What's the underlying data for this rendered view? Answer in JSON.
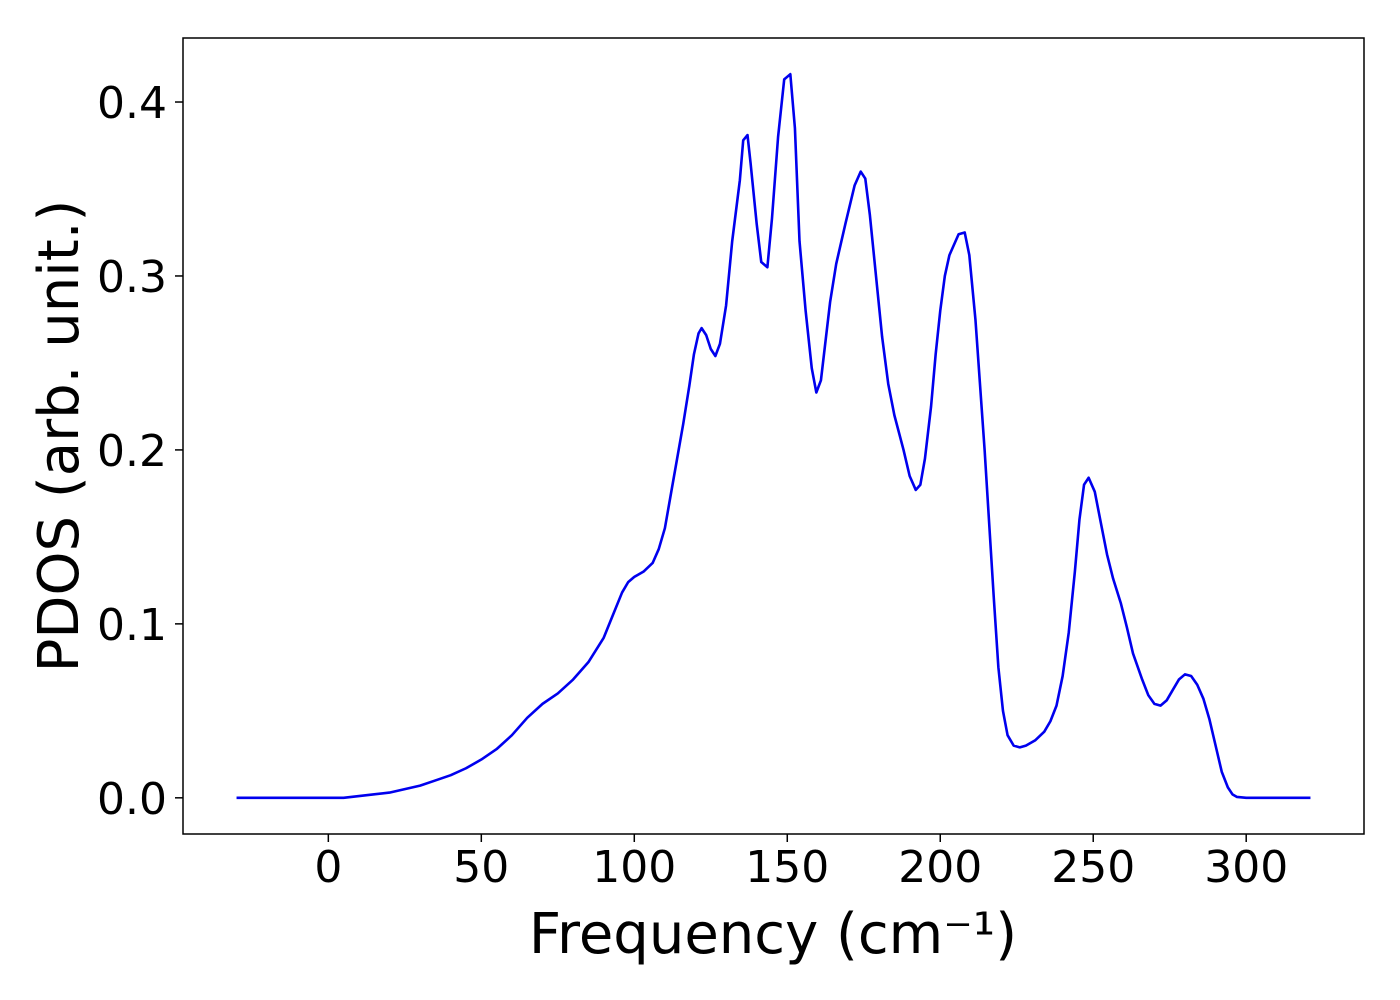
{
  "chart_data": {
    "type": "line",
    "xlabel": "Frequency (cm⁻¹)",
    "ylabel": "PDOS (arb. unit.)",
    "x": [
      -30,
      -20,
      -10,
      0,
      5,
      10,
      15,
      20,
      25,
      30,
      35,
      40,
      45,
      50,
      55,
      60,
      65,
      70,
      75,
      80,
      85,
      90,
      93,
      96,
      98,
      100,
      103,
      106,
      108,
      110,
      112,
      114,
      116,
      118,
      119.5,
      121,
      122,
      123.5,
      125,
      126.5,
      128,
      130,
      132,
      134.5,
      135.6,
      137,
      138,
      140,
      141.5,
      143.5,
      145,
      147,
      149,
      151,
      152.5,
      154,
      156,
      158,
      159.5,
      161,
      164,
      166,
      169,
      172,
      174,
      175.5,
      177,
      179,
      181,
      183,
      185,
      188,
      190,
      192,
      193.5,
      195,
      197,
      198.5,
      200,
      201.5,
      203,
      206,
      208,
      209.5,
      211.5,
      214.5,
      217.5,
      219,
      220.5,
      222,
      224,
      226,
      228,
      231,
      234,
      236,
      238,
      240,
      242,
      244,
      245.5,
      247,
      248.5,
      250.5,
      252.5,
      254.5,
      256.5,
      259,
      261,
      263,
      266,
      268,
      270,
      272,
      274,
      276,
      278,
      280,
      282,
      284,
      286,
      288,
      290,
      292,
      294,
      295.5,
      297,
      300,
      310,
      321
    ],
    "series": [
      {
        "color": "#0000ee",
        "values": [
          0,
          0,
          0,
          0,
          0,
          0.001,
          0.002,
          0.003,
          0.005,
          0.007,
          0.01,
          0.013,
          0.017,
          0.022,
          0.028,
          0.036,
          0.046,
          0.054,
          0.06,
          0.068,
          0.078,
          0.092,
          0.105,
          0.118,
          0.124,
          0.127,
          0.13,
          0.135,
          0.143,
          0.155,
          0.175,
          0.195,
          0.215,
          0.237,
          0.255,
          0.267,
          0.27,
          0.266,
          0.258,
          0.254,
          0.261,
          0.283,
          0.32,
          0.355,
          0.378,
          0.381,
          0.365,
          0.33,
          0.308,
          0.305,
          0.333,
          0.38,
          0.413,
          0.416,
          0.385,
          0.32,
          0.28,
          0.247,
          0.233,
          0.24,
          0.285,
          0.307,
          0.33,
          0.352,
          0.36,
          0.356,
          0.335,
          0.3,
          0.265,
          0.238,
          0.22,
          0.2,
          0.185,
          0.177,
          0.18,
          0.195,
          0.225,
          0.255,
          0.28,
          0.3,
          0.312,
          0.324,
          0.325,
          0.312,
          0.275,
          0.2,
          0.115,
          0.075,
          0.05,
          0.036,
          0.03,
          0.029,
          0.03,
          0.033,
          0.038,
          0.044,
          0.053,
          0.07,
          0.095,
          0.13,
          0.16,
          0.18,
          0.184,
          0.176,
          0.158,
          0.14,
          0.126,
          0.112,
          0.098,
          0.083,
          0.068,
          0.059,
          0.054,
          0.053,
          0.056,
          0.062,
          0.068,
          0.071,
          0.07,
          0.065,
          0.057,
          0.045,
          0.03,
          0.015,
          0.006,
          0.002,
          0.0005,
          0,
          0,
          0
        ]
      }
    ],
    "xlim": [
      -47.5,
      338.5
    ],
    "xticks": [
      0,
      50,
      100,
      150,
      200,
      250,
      300
    ],
    "ylim": [
      -0.0208,
      0.4368
    ],
    "yticks": [
      {
        "value": 0,
        "label": "0.0"
      },
      0.1,
      0.2,
      0.3,
      0.4
    ]
  }
}
